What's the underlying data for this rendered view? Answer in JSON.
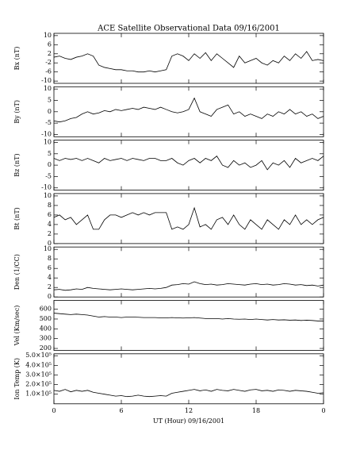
{
  "title": "ACE Satellite Observational Data   09/16/2001",
  "chart_data": [
    {
      "type": "line",
      "ylabel": "Bx (nT)",
      "xlim": [
        0,
        24
      ],
      "ylim": [
        -11,
        11
      ],
      "yticks": [
        -10,
        -6,
        -2,
        2,
        6,
        10
      ],
      "x": [
        0,
        0.5,
        1,
        1.5,
        2,
        2.5,
        3,
        3.5,
        4,
        4.5,
        5,
        5.5,
        6,
        6.5,
        7,
        7.5,
        8,
        8.5,
        9,
        9.5,
        10,
        10.5,
        11,
        11.5,
        12,
        12.5,
        13,
        13.5,
        14,
        14.5,
        15,
        15.5,
        16,
        16.5,
        17,
        17.5,
        18,
        18.5,
        19,
        19.5,
        20,
        20.5,
        21,
        21.5,
        22,
        22.5,
        23,
        23.5,
        24
      ],
      "series": [
        {
          "color": "#000000",
          "values": [
            0.5,
            1,
            0,
            -0.5,
            0.5,
            1,
            2,
            1,
            -3,
            -4,
            -4.5,
            -5,
            -5,
            -5.5,
            -5.5,
            -6,
            -6,
            -5.5,
            -6,
            -5.5,
            -5,
            1,
            2,
            1,
            -1,
            2,
            0,
            2.5,
            -1,
            2,
            0,
            -2,
            -4,
            1,
            -2,
            -1,
            0,
            -2,
            -3,
            -1,
            -2,
            1,
            -1,
            2,
            0,
            3,
            -1,
            -0.5,
            -1
          ]
        }
      ]
    },
    {
      "type": "line",
      "ylabel": "By (nT)",
      "xlim": [
        0,
        24
      ],
      "ylim": [
        -11,
        11
      ],
      "yticks": [
        -10,
        -5,
        0,
        5,
        10
      ],
      "x": [
        0,
        0.5,
        1,
        1.5,
        2,
        2.5,
        3,
        3.5,
        4,
        4.5,
        5,
        5.5,
        6,
        6.5,
        7,
        7.5,
        8,
        8.5,
        9,
        9.5,
        10,
        10.5,
        11,
        11.5,
        12,
        12.5,
        13,
        13.5,
        14,
        14.5,
        15,
        15.5,
        16,
        16.5,
        17,
        17.5,
        18,
        18.5,
        19,
        19.5,
        20,
        20.5,
        21,
        21.5,
        22,
        22.5,
        23,
        23.5,
        24
      ],
      "series": [
        {
          "color": "#000000",
          "values": [
            -4,
            -4.5,
            -4,
            -3,
            -2.5,
            -1,
            0,
            -1,
            -0.5,
            0.5,
            0,
            1,
            0.5,
            1,
            1.5,
            1,
            2,
            1.5,
            1,
            2,
            1,
            0,
            -0.5,
            0,
            1,
            6,
            0,
            -1,
            -2,
            1,
            2,
            3,
            -1,
            0,
            -2,
            -1,
            -2,
            -3,
            -1,
            -2,
            0,
            -1,
            1,
            -1,
            0,
            -2,
            -1,
            -3,
            -2
          ]
        }
      ]
    },
    {
      "type": "line",
      "ylabel": "Bz (nT)",
      "xlim": [
        0,
        24
      ],
      "ylim": [
        -11,
        11
      ],
      "yticks": [
        -10,
        -5,
        0,
        5,
        10
      ],
      "x": [
        0,
        0.5,
        1,
        1.5,
        2,
        2.5,
        3,
        3.5,
        4,
        4.5,
        5,
        5.5,
        6,
        6.5,
        7,
        7.5,
        8,
        8.5,
        9,
        9.5,
        10,
        10.5,
        11,
        11.5,
        12,
        12.5,
        13,
        13.5,
        14,
        14.5,
        15,
        15.5,
        16,
        16.5,
        17,
        17.5,
        18,
        18.5,
        19,
        19.5,
        20,
        20.5,
        21,
        21.5,
        22,
        22.5,
        23,
        23.5,
        24
      ],
      "series": [
        {
          "color": "#000000",
          "values": [
            3,
            2,
            3,
            2.5,
            3,
            2,
            3,
            2,
            1,
            3,
            2,
            2.5,
            3,
            2,
            3,
            2.5,
            2,
            3,
            3,
            2,
            2,
            3,
            1,
            0,
            2,
            3,
            1,
            3,
            2,
            4,
            0,
            -1,
            2,
            0,
            1,
            -1,
            0,
            2,
            -2,
            1,
            0,
            2,
            -1,
            3,
            1,
            2,
            3,
            2,
            4
          ]
        }
      ]
    },
    {
      "type": "line",
      "ylabel": "Bt (nT)",
      "xlim": [
        0,
        24
      ],
      "ylim": [
        0,
        10.5
      ],
      "yticks": [
        0,
        2,
        4,
        6,
        8,
        10
      ],
      "x": [
        0,
        0.5,
        1,
        1.5,
        2,
        2.5,
        3,
        3.5,
        4,
        4.5,
        5,
        5.5,
        6,
        6.5,
        7,
        7.5,
        8,
        8.5,
        9,
        9.5,
        10,
        10.5,
        11,
        11.5,
        12,
        12.5,
        13,
        13.5,
        14,
        14.5,
        15,
        15.5,
        16,
        16.5,
        17,
        17.5,
        18,
        18.5,
        19,
        19.5,
        20,
        20.5,
        21,
        21.5,
        22,
        22.5,
        23,
        23.5,
        24
      ],
      "series": [
        {
          "color": "#000000",
          "values": [
            5.5,
            6,
            5,
            5.5,
            4,
            5,
            6,
            3,
            3,
            5,
            6,
            6,
            5.5,
            6,
            6.5,
            6,
            6.5,
            6,
            6.5,
            6.5,
            6.5,
            3,
            3.5,
            3,
            4,
            7.5,
            3.5,
            4,
            3,
            5,
            5.5,
            4,
            6,
            4,
            3,
            5,
            4,
            3,
            5,
            4,
            3,
            5,
            4,
            6,
            4,
            5,
            4,
            5,
            5.5
          ]
        }
      ]
    },
    {
      "type": "line",
      "ylabel": "Den (1/CC)",
      "xlim": [
        0,
        24
      ],
      "ylim": [
        0,
        10.5
      ],
      "yticks": [
        0,
        2,
        4,
        6,
        8,
        10
      ],
      "x": [
        0,
        0.5,
        1,
        1.5,
        2,
        2.5,
        3,
        3.5,
        4,
        4.5,
        5,
        5.5,
        6,
        6.5,
        7,
        7.5,
        8,
        8.5,
        9,
        9.5,
        10,
        10.5,
        11,
        11.5,
        12,
        12.5,
        13,
        13.5,
        14,
        14.5,
        15,
        15.5,
        16,
        16.5,
        17,
        17.5,
        18,
        18.5,
        19,
        19.5,
        20,
        20.5,
        21,
        21.5,
        22,
        22.5,
        23,
        23.5,
        24
      ],
      "series": [
        {
          "color": "#000000",
          "values": [
            1.5,
            1.6,
            1.4,
            1.5,
            1.7,
            1.6,
            2,
            1.8,
            1.7,
            1.6,
            1.5,
            1.6,
            1.7,
            1.6,
            1.5,
            1.6,
            1.7,
            1.8,
            1.7,
            1.8,
            2,
            2.5,
            2.6,
            2.8,
            2.7,
            3.2,
            2.8,
            2.6,
            2.7,
            2.5,
            2.6,
            2.8,
            2.7,
            2.6,
            2.5,
            2.7,
            2.8,
            2.6,
            2.7,
            2.5,
            2.6,
            2.8,
            2.7,
            2.5,
            2.6,
            2.4,
            2.5,
            2.3,
            2.5
          ]
        }
      ]
    },
    {
      "type": "line",
      "ylabel": "Vel (Km/sec)",
      "xlim": [
        0,
        24
      ],
      "ylim": [
        180,
        690
      ],
      "yticks": [
        200,
        300,
        400,
        500,
        600
      ],
      "x": [
        0,
        0.5,
        1,
        1.5,
        2,
        2.5,
        3,
        3.5,
        4,
        4.5,
        5,
        5.5,
        6,
        6.5,
        7,
        7.5,
        8,
        8.5,
        9,
        9.5,
        10,
        10.5,
        11,
        11.5,
        12,
        12.5,
        13,
        13.5,
        14,
        14.5,
        15,
        15.5,
        16,
        16.5,
        17,
        17.5,
        18,
        18.5,
        19,
        19.5,
        20,
        20.5,
        21,
        21.5,
        22,
        22.5,
        23,
        23.5,
        24
      ],
      "series": [
        {
          "color": "#000000",
          "values": [
            560,
            555,
            550,
            545,
            550,
            545,
            540,
            530,
            520,
            525,
            520,
            520,
            515,
            520,
            520,
            518,
            515,
            515,
            515,
            512,
            512,
            515,
            512,
            510,
            512,
            515,
            510,
            505,
            505,
            505,
            500,
            505,
            500,
            498,
            500,
            495,
            500,
            495,
            490,
            495,
            490,
            492,
            488,
            490,
            485,
            488,
            485,
            480,
            480
          ]
        }
      ]
    },
    {
      "type": "line",
      "ylabel": "Ion Temp (K)",
      "xlabel": "UT (Hour)  09/16/2001",
      "xlim": [
        0,
        24
      ],
      "ylim": [
        0,
        520000
      ],
      "yticks": [
        {
          "value": 100000,
          "label": "1.0×10⁵"
        },
        {
          "value": 200000,
          "label": "2.0×10⁵"
        },
        {
          "value": 300000,
          "label": "3.0×10⁵"
        },
        {
          "value": 400000,
          "label": "4.0×10⁵"
        },
        {
          "value": 500000,
          "label": "5.0×10⁵"
        }
      ],
      "xticks": [
        0,
        6,
        12,
        18,
        {
          "value": 24,
          "label": "0"
        }
      ],
      "x": [
        0,
        0.5,
        1,
        1.5,
        2,
        2.5,
        3,
        3.5,
        4,
        4.5,
        5,
        5.5,
        6,
        6.5,
        7,
        7.5,
        8,
        8.5,
        9,
        9.5,
        10,
        10.5,
        11,
        11.5,
        12,
        12.5,
        13,
        13.5,
        14,
        14.5,
        15,
        15.5,
        16,
        16.5,
        17,
        17.5,
        18,
        18.5,
        19,
        19.5,
        20,
        20.5,
        21,
        21.5,
        22,
        22.5,
        23,
        23.5,
        24
      ],
      "series": [
        {
          "color": "#000000",
          "values": [
            140000,
            130000,
            150000,
            125000,
            140000,
            130000,
            140000,
            120000,
            110000,
            100000,
            90000,
            80000,
            85000,
            75000,
            80000,
            90000,
            80000,
            75000,
            80000,
            85000,
            80000,
            110000,
            120000,
            130000,
            140000,
            150000,
            135000,
            145000,
            130000,
            150000,
            140000,
            135000,
            150000,
            140000,
            130000,
            145000,
            150000,
            135000,
            140000,
            130000,
            145000,
            140000,
            130000,
            140000,
            135000,
            130000,
            120000,
            110000,
            115000
          ]
        }
      ]
    }
  ]
}
